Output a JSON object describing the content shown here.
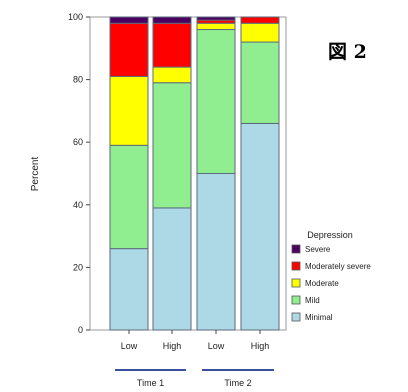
{
  "figure_label": "図 2",
  "chart_data": {
    "type": "bar",
    "stacked": true,
    "categories": [
      "Low",
      "High",
      "Low",
      "High"
    ],
    "groups": [
      {
        "label": "Time 1",
        "categories": [
          0,
          1
        ]
      },
      {
        "label": "Time 2",
        "categories": [
          2,
          3
        ]
      }
    ],
    "ylabel": "Percent",
    "ylim": [
      0,
      100
    ],
    "yticks": [
      0,
      20,
      40,
      60,
      80,
      100
    ],
    "grid": false,
    "legend": {
      "title": "Depression",
      "placement": "bottom-right"
    },
    "series": [
      {
        "name": "Minimal",
        "color": "#add8e6",
        "values": [
          26,
          39,
          50,
          66
        ]
      },
      {
        "name": "Mild",
        "color": "#90ee90",
        "values": [
          33,
          40,
          46,
          26
        ]
      },
      {
        "name": "Moderate",
        "color": "#ffff00",
        "values": [
          22,
          5,
          2,
          6
        ]
      },
      {
        "name": "Moderately severe",
        "color": "#ff0000",
        "values": [
          17,
          14,
          1,
          2
        ]
      },
      {
        "name": "Severe",
        "color": "#4b0060",
        "values": [
          2,
          2,
          1,
          0
        ]
      }
    ]
  }
}
